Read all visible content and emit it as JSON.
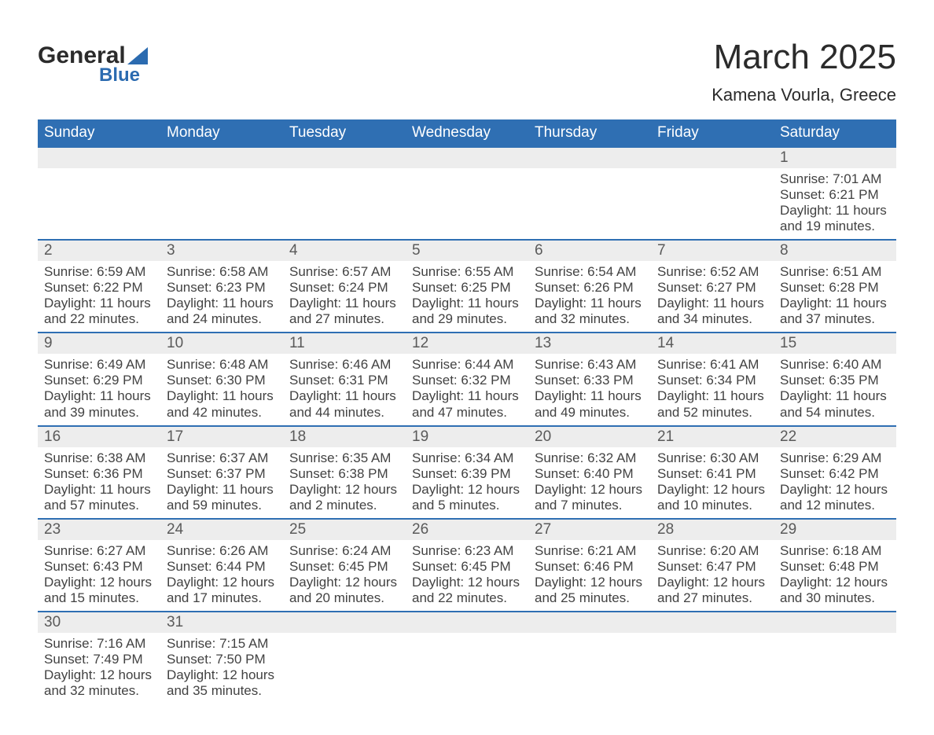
{
  "brand": {
    "name": "General",
    "sub": "Blue"
  },
  "title": "March 2025",
  "location": "Kamena Vourla, Greece",
  "colors": {
    "header_bg": "#2f6fb3",
    "header_text": "#ffffff",
    "strip_bg": "#ededed",
    "rule": "#2f6fb3",
    "body_text": "#424242",
    "accent": "#2b6bb0"
  },
  "layout": {
    "columns": 7,
    "rows": 6,
    "cell_font_size_pt": 13
  },
  "weekdays": [
    "Sunday",
    "Monday",
    "Tuesday",
    "Wednesday",
    "Thursday",
    "Friday",
    "Saturday"
  ],
  "labels": {
    "sunrise": "Sunrise:",
    "sunset": "Sunset:",
    "daylight": "Daylight:"
  },
  "weeks": [
    [
      null,
      null,
      null,
      null,
      null,
      null,
      {
        "n": "1",
        "sunrise": "7:01 AM",
        "sunset": "6:21 PM",
        "daylight": "11 hours and 19 minutes."
      }
    ],
    [
      {
        "n": "2",
        "sunrise": "6:59 AM",
        "sunset": "6:22 PM",
        "daylight": "11 hours and 22 minutes."
      },
      {
        "n": "3",
        "sunrise": "6:58 AM",
        "sunset": "6:23 PM",
        "daylight": "11 hours and 24 minutes."
      },
      {
        "n": "4",
        "sunrise": "6:57 AM",
        "sunset": "6:24 PM",
        "daylight": "11 hours and 27 minutes."
      },
      {
        "n": "5",
        "sunrise": "6:55 AM",
        "sunset": "6:25 PM",
        "daylight": "11 hours and 29 minutes."
      },
      {
        "n": "6",
        "sunrise": "6:54 AM",
        "sunset": "6:26 PM",
        "daylight": "11 hours and 32 minutes."
      },
      {
        "n": "7",
        "sunrise": "6:52 AM",
        "sunset": "6:27 PM",
        "daylight": "11 hours and 34 minutes."
      },
      {
        "n": "8",
        "sunrise": "6:51 AM",
        "sunset": "6:28 PM",
        "daylight": "11 hours and 37 minutes."
      }
    ],
    [
      {
        "n": "9",
        "sunrise": "6:49 AM",
        "sunset": "6:29 PM",
        "daylight": "11 hours and 39 minutes."
      },
      {
        "n": "10",
        "sunrise": "6:48 AM",
        "sunset": "6:30 PM",
        "daylight": "11 hours and 42 minutes."
      },
      {
        "n": "11",
        "sunrise": "6:46 AM",
        "sunset": "6:31 PM",
        "daylight": "11 hours and 44 minutes."
      },
      {
        "n": "12",
        "sunrise": "6:44 AM",
        "sunset": "6:32 PM",
        "daylight": "11 hours and 47 minutes."
      },
      {
        "n": "13",
        "sunrise": "6:43 AM",
        "sunset": "6:33 PM",
        "daylight": "11 hours and 49 minutes."
      },
      {
        "n": "14",
        "sunrise": "6:41 AM",
        "sunset": "6:34 PM",
        "daylight": "11 hours and 52 minutes."
      },
      {
        "n": "15",
        "sunrise": "6:40 AM",
        "sunset": "6:35 PM",
        "daylight": "11 hours and 54 minutes."
      }
    ],
    [
      {
        "n": "16",
        "sunrise": "6:38 AM",
        "sunset": "6:36 PM",
        "daylight": "11 hours and 57 minutes."
      },
      {
        "n": "17",
        "sunrise": "6:37 AM",
        "sunset": "6:37 PM",
        "daylight": "11 hours and 59 minutes."
      },
      {
        "n": "18",
        "sunrise": "6:35 AM",
        "sunset": "6:38 PM",
        "daylight": "12 hours and 2 minutes."
      },
      {
        "n": "19",
        "sunrise": "6:34 AM",
        "sunset": "6:39 PM",
        "daylight": "12 hours and 5 minutes."
      },
      {
        "n": "20",
        "sunrise": "6:32 AM",
        "sunset": "6:40 PM",
        "daylight": "12 hours and 7 minutes."
      },
      {
        "n": "21",
        "sunrise": "6:30 AM",
        "sunset": "6:41 PM",
        "daylight": "12 hours and 10 minutes."
      },
      {
        "n": "22",
        "sunrise": "6:29 AM",
        "sunset": "6:42 PM",
        "daylight": "12 hours and 12 minutes."
      }
    ],
    [
      {
        "n": "23",
        "sunrise": "6:27 AM",
        "sunset": "6:43 PM",
        "daylight": "12 hours and 15 minutes."
      },
      {
        "n": "24",
        "sunrise": "6:26 AM",
        "sunset": "6:44 PM",
        "daylight": "12 hours and 17 minutes."
      },
      {
        "n": "25",
        "sunrise": "6:24 AM",
        "sunset": "6:45 PM",
        "daylight": "12 hours and 20 minutes."
      },
      {
        "n": "26",
        "sunrise": "6:23 AM",
        "sunset": "6:45 PM",
        "daylight": "12 hours and 22 minutes."
      },
      {
        "n": "27",
        "sunrise": "6:21 AM",
        "sunset": "6:46 PM",
        "daylight": "12 hours and 25 minutes."
      },
      {
        "n": "28",
        "sunrise": "6:20 AM",
        "sunset": "6:47 PM",
        "daylight": "12 hours and 27 minutes."
      },
      {
        "n": "29",
        "sunrise": "6:18 AM",
        "sunset": "6:48 PM",
        "daylight": "12 hours and 30 minutes."
      }
    ],
    [
      {
        "n": "30",
        "sunrise": "7:16 AM",
        "sunset": "7:49 PM",
        "daylight": "12 hours and 32 minutes."
      },
      {
        "n": "31",
        "sunrise": "7:15 AM",
        "sunset": "7:50 PM",
        "daylight": "12 hours and 35 minutes."
      },
      null,
      null,
      null,
      null,
      null
    ]
  ]
}
